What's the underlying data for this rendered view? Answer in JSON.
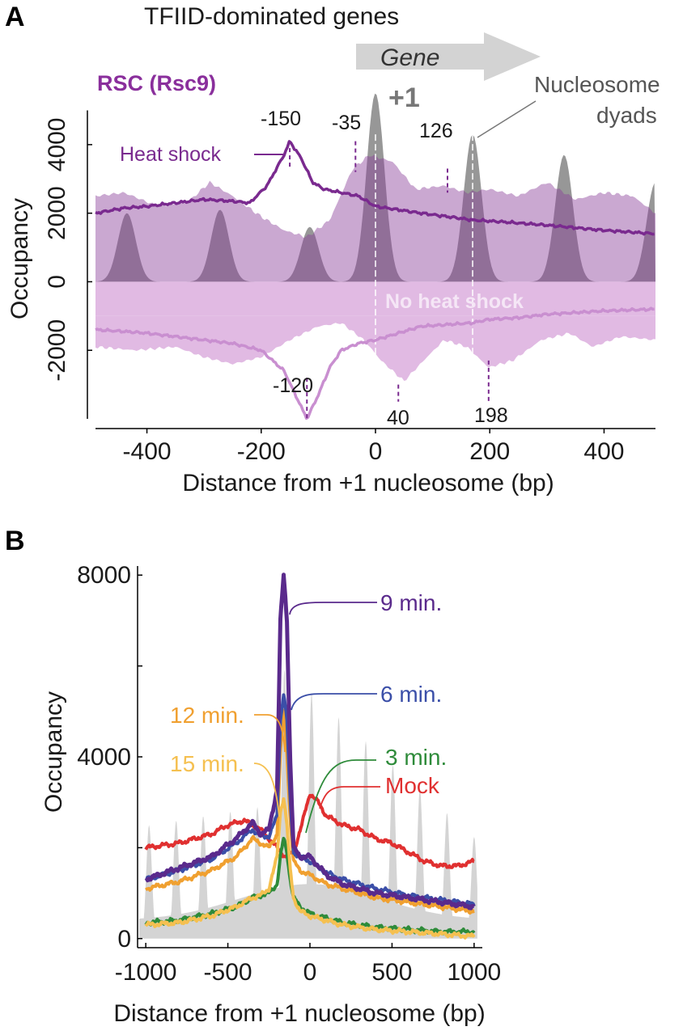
{
  "chart_data": [
    {
      "panel": "A",
      "type": "area",
      "title": "TFIID-dominated genes",
      "gene_label": "Gene",
      "plus_one_label": "+1",
      "factor_label": "RSC (Rsc9)",
      "nucleosome_label": "Nucleosome dyads",
      "xlabel": "Distance from +1 nucleosome (bp)",
      "ylabel": "Occupancy",
      "xlim": [
        -490,
        490
      ],
      "ylim": [
        -4000,
        5200
      ],
      "xticks": [
        "-400",
        "-200",
        "0",
        "200",
        "400"
      ],
      "yticks": [
        "-2000",
        "0",
        "2000",
        "4000"
      ],
      "series": [
        {
          "name": "Heat shock",
          "color": "#7a2a8f",
          "x": [
            -490,
            -440,
            -400,
            -350,
            -300,
            -250,
            -220,
            -190,
            -160,
            -150,
            -130,
            -110,
            -90,
            -60,
            -30,
            0,
            40,
            80,
            126,
            170,
            220,
            300,
            400,
            490
          ],
          "y": [
            2000,
            2150,
            2200,
            2300,
            2400,
            2350,
            2300,
            2800,
            3700,
            4100,
            3600,
            2900,
            2700,
            2600,
            2500,
            2200,
            2100,
            2000,
            1900,
            1800,
            1750,
            1650,
            1500,
            1400
          ]
        },
        {
          "name": "No heat shock",
          "color": "#c98fd0",
          "x": [
            -490,
            -440,
            -400,
            -350,
            -300,
            -250,
            -200,
            -160,
            -140,
            -120,
            -100,
            -80,
            -60,
            -30,
            0,
            40,
            80,
            126,
            170,
            198,
            250,
            300,
            400,
            490
          ],
          "y": [
            -1400,
            -1450,
            -1500,
            -1600,
            -1700,
            -1800,
            -2000,
            -2600,
            -3300,
            -4000,
            -3300,
            -2500,
            -2000,
            -1800,
            -1700,
            -1500,
            -1300,
            -1250,
            -1200,
            -1100,
            -1050,
            -950,
            -850,
            -800
          ]
        }
      ],
      "annotations": [
        "-150",
        "-35",
        "126",
        "-120",
        "40",
        "198"
      ]
    },
    {
      "panel": "B",
      "type": "line",
      "xlabel": "Distance from +1 nucleosome (bp)",
      "ylabel": "Occupancy",
      "xlim": [
        -1050,
        1050
      ],
      "ylim": [
        -200,
        8200
      ],
      "xticks": [
        "-1000",
        "-500",
        "0",
        "500",
        "1000"
      ],
      "yticks": [
        "0",
        "4000",
        "8000"
      ],
      "series": [
        {
          "name": "9 min.",
          "color": "#5a2a8c",
          "x": [
            -1000,
            -800,
            -600,
            -450,
            -350,
            -300,
            -250,
            -200,
            -180,
            -160,
            -140,
            -120,
            -100,
            -60,
            0,
            100,
            200,
            400,
            600,
            800,
            1000
          ],
          "y": [
            1300,
            1550,
            1800,
            2200,
            2550,
            2300,
            2400,
            3300,
            7000,
            8000,
            7000,
            3900,
            2000,
            1800,
            1800,
            1400,
            1200,
            1000,
            900,
            800,
            700
          ]
        },
        {
          "name": "6 min.",
          "color": "#3b4fa8",
          "x": [
            -1000,
            -800,
            -600,
            -450,
            -350,
            -300,
            -250,
            -200,
            -180,
            -160,
            -140,
            -120,
            -100,
            -60,
            0,
            100,
            200,
            400,
            600,
            800,
            1000
          ],
          "y": [
            1300,
            1500,
            1750,
            2100,
            2400,
            2250,
            2250,
            2700,
            4800,
            5400,
            4800,
            3000,
            1900,
            1800,
            1700,
            1450,
            1300,
            1100,
            950,
            850,
            750
          ]
        },
        {
          "name": "12 min.",
          "color": "#f0a030",
          "x": [
            -1000,
            -800,
            -600,
            -450,
            -350,
            -300,
            -250,
            -200,
            -180,
            -160,
            -140,
            -120,
            -100,
            -60,
            0,
            100,
            200,
            400,
            600,
            800,
            1000
          ],
          "y": [
            1100,
            1250,
            1500,
            1800,
            2200,
            2100,
            2000,
            2300,
            4100,
            5000,
            4100,
            2600,
            1700,
            1500,
            1400,
            1200,
            1100,
            900,
            800,
            700,
            600
          ]
        },
        {
          "name": "15 min.",
          "color": "#f5c050",
          "x": [
            -1000,
            -800,
            -600,
            -450,
            -350,
            -300,
            -250,
            -200,
            -180,
            -160,
            -140,
            -120,
            -100,
            -60,
            0,
            100,
            200,
            400,
            600,
            800,
            1000
          ],
          "y": [
            300,
            350,
            500,
            700,
            900,
            950,
            1100,
            1800,
            2800,
            3100,
            2500,
            1500,
            900,
            600,
            500,
            400,
            300,
            200,
            150,
            100,
            50
          ]
        },
        {
          "name": "3 min.",
          "color": "#2e8b3a",
          "x": [
            -1000,
            -800,
            -600,
            -450,
            -350,
            -300,
            -250,
            -200,
            -180,
            -160,
            -140,
            -120,
            -100,
            -60,
            0,
            100,
            200,
            400,
            600,
            800,
            1000
          ],
          "y": [
            350,
            400,
            550,
            700,
            900,
            950,
            1000,
            1200,
            1800,
            2200,
            1900,
            1300,
            900,
            700,
            550,
            450,
            350,
            250,
            200,
            150,
            150
          ]
        },
        {
          "name": "Mock",
          "color": "#e03030",
          "x": [
            -1000,
            -800,
            -600,
            -500,
            -400,
            -300,
            -250,
            -200,
            -150,
            -100,
            -50,
            0,
            50,
            100,
            200,
            300,
            400,
            500,
            600,
            700,
            800,
            900,
            1000
          ],
          "y": [
            2000,
            2100,
            2300,
            2500,
            2600,
            2400,
            2200,
            2000,
            1800,
            1900,
            2500,
            3200,
            3000,
            2700,
            2500,
            2400,
            2200,
            2100,
            1900,
            1700,
            1600,
            1600,
            1700
          ]
        }
      ]
    }
  ]
}
